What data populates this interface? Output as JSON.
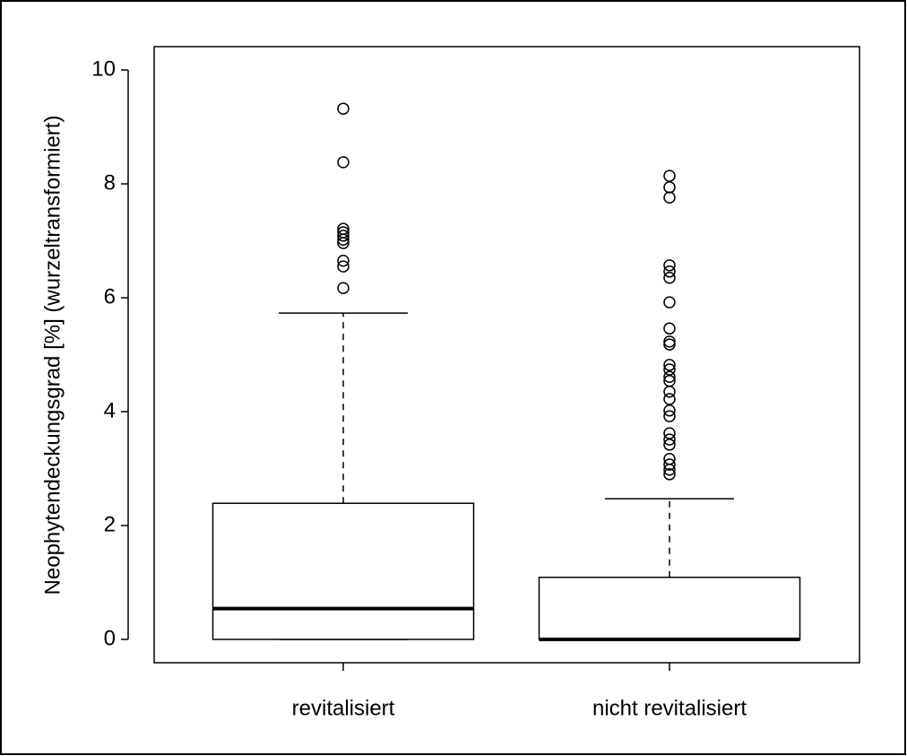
{
  "chart_data": {
    "type": "box",
    "y_label": "Neophytendeckungsgrad [%] (wurzeltransformiert)",
    "categories": [
      "revitalisiert",
      "nicht revitalisiert"
    ],
    "boxes": [
      {
        "min": 0,
        "q1": 0,
        "median": 0.54,
        "q3": 2.39,
        "max": 5.73,
        "outliers": [
          9.32,
          8.38,
          7.21,
          7.15,
          7.09,
          7.02,
          6.96,
          6.65,
          6.55,
          6.17
        ]
      },
      {
        "min": 0,
        "q1": 0,
        "median": 0,
        "q3": 1.09,
        "max": 2.47,
        "outliers": [
          8.14,
          7.94,
          7.76,
          6.57,
          6.46,
          6.35,
          5.92,
          5.46,
          5.23,
          5.18,
          4.82,
          4.74,
          4.61,
          4.54,
          4.35,
          4.22,
          4.02,
          3.92,
          3.62,
          3.51,
          3.42,
          3.17,
          3.07,
          2.98,
          2.9
        ]
      }
    ],
    "ylim": [
      -0.41,
      10.41
    ],
    "yticks": [
      0,
      2,
      4,
      6,
      8,
      10
    ]
  }
}
